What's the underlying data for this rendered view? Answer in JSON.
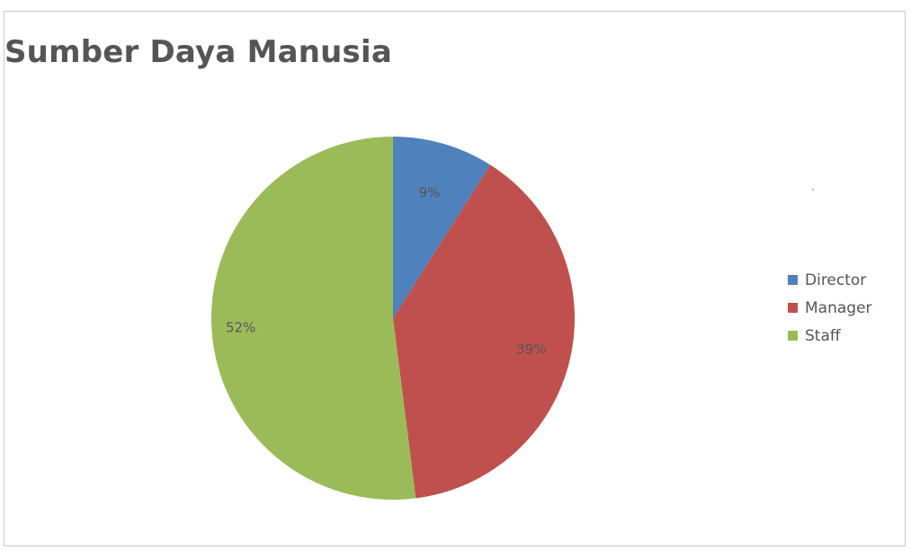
{
  "chart_data": {
    "type": "pie",
    "title": "Sumber Daya Manusia",
    "categories": [
      "Director",
      "Manager",
      "Staff"
    ],
    "values": [
      9,
      39,
      52
    ],
    "data_labels": [
      "9%",
      "39%",
      "52%"
    ],
    "colors": [
      "#4f81bd",
      "#c0504d",
      "#9bbb59"
    ],
    "legend_position": "right"
  }
}
